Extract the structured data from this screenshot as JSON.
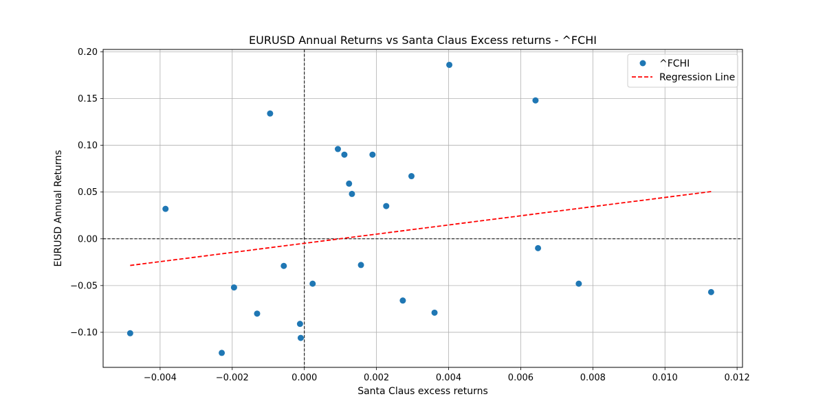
{
  "chart_data": {
    "type": "scatter",
    "title": "EURUSD Annual Returns vs Santa Claus Excess returns - ^FCHI",
    "xlabel": "Santa Claus excess returns",
    "ylabel": "EURUSD Annual Returns",
    "xlim": [
      -0.00558,
      0.01215
    ],
    "ylim": [
      -0.1375,
      0.2025
    ],
    "x_ticks": [
      -0.004,
      -0.002,
      0.0,
      0.002,
      0.004,
      0.006,
      0.008,
      0.01,
      0.012
    ],
    "x_tick_labels": [
      "−0.004",
      "−0.002",
      "0.000",
      "0.002",
      "0.004",
      "0.006",
      "0.008",
      "0.010",
      "0.012"
    ],
    "y_ticks": [
      -0.1,
      -0.05,
      0.0,
      0.05,
      0.1,
      0.15,
      0.2
    ],
    "y_tick_labels": [
      "−0.10",
      "−0.05",
      "0.00",
      "0.05",
      "0.10",
      "0.15",
      "0.20"
    ],
    "grid": true,
    "reference_lines": {
      "x": 0.0,
      "y": 0.0,
      "style": "dashed",
      "color": "#000000"
    },
    "legend": {
      "placement": "top-right",
      "entries": [
        "^FCHI",
        "Regression Line"
      ]
    },
    "series": [
      {
        "name": "^FCHI",
        "kind": "scatter",
        "color": "#1f77b4",
        "points": [
          {
            "x": -0.00483,
            "y": -0.101
          },
          {
            "x": -0.00385,
            "y": 0.032
          },
          {
            "x": -0.00229,
            "y": -0.122
          },
          {
            "x": -0.00195,
            "y": -0.052
          },
          {
            "x": -0.00131,
            "y": -0.08
          },
          {
            "x": -0.00095,
            "y": 0.134
          },
          {
            "x": -0.00057,
            "y": -0.029
          },
          {
            "x": -0.00012,
            "y": -0.091
          },
          {
            "x": -0.0001,
            "y": -0.106
          },
          {
            "x": 0.00023,
            "y": -0.048
          },
          {
            "x": 0.00093,
            "y": 0.096
          },
          {
            "x": 0.00111,
            "y": 0.09
          },
          {
            "x": 0.00124,
            "y": 0.059
          },
          {
            "x": 0.00132,
            "y": 0.048
          },
          {
            "x": 0.00157,
            "y": -0.028
          },
          {
            "x": 0.00189,
            "y": 0.09
          },
          {
            "x": 0.00227,
            "y": 0.035
          },
          {
            "x": 0.00273,
            "y": -0.066
          },
          {
            "x": 0.00297,
            "y": 0.067
          },
          {
            "x": 0.00361,
            "y": -0.079
          },
          {
            "x": 0.00402,
            "y": 0.186
          },
          {
            "x": 0.00641,
            "y": 0.148
          },
          {
            "x": 0.00648,
            "y": -0.01
          },
          {
            "x": 0.00761,
            "y": -0.048
          },
          {
            "x": 0.01128,
            "y": -0.057
          }
        ]
      },
      {
        "name": "Regression Line",
        "kind": "line",
        "color": "#ff0000",
        "style": "dashed",
        "points": [
          {
            "x": -0.00483,
            "y": -0.0285
          },
          {
            "x": 0.01128,
            "y": 0.0505
          }
        ]
      }
    ]
  }
}
